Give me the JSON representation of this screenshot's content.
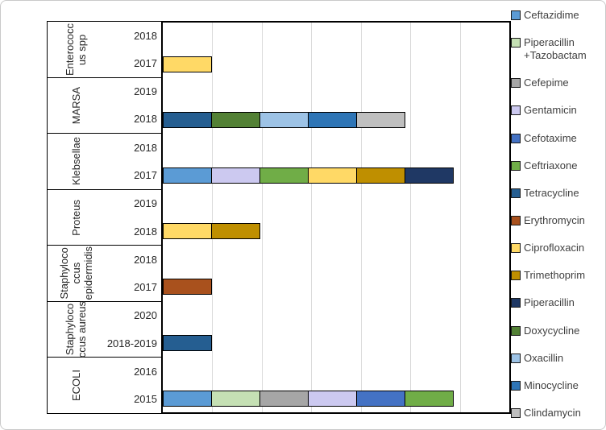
{
  "chart_data": {
    "type": "bar",
    "orientation": "horizontal",
    "stacked": true,
    "title": "",
    "xlabel": "",
    "ylabel": "",
    "xlim": [
      0,
      7
    ],
    "grid": true,
    "gridline_color": "#d9d9d9",
    "segment_value": 1,
    "legend_position": "right",
    "groups": [
      {
        "organism": "Enterococcus spp",
        "label_lines": [
          "Enterococc",
          "us spp"
        ],
        "rows": [
          {
            "year": "2018",
            "segments": []
          },
          {
            "year": "2017",
            "segments": [
              "Ciprofloxacin"
            ]
          }
        ]
      },
      {
        "organism": "MARSA",
        "label_lines": [
          "MARSA"
        ],
        "rows": [
          {
            "year": "2019",
            "segments": []
          },
          {
            "year": "2018",
            "segments": [
              "Tetracycline",
              "Doxycycline",
              "Oxacillin",
              "Minocycline",
              "Clindamycin"
            ]
          }
        ]
      },
      {
        "organism": "Klebsellae",
        "label_lines": [
          "Klebsellae"
        ],
        "rows": [
          {
            "year": "2018",
            "segments": []
          },
          {
            "year": "2017",
            "segments": [
              "Ceftazidime",
              "Gentamicin",
              "Ceftriaxone",
              "Ciprofloxacin",
              "Trimethoprim",
              "Piperacillin"
            ]
          }
        ]
      },
      {
        "organism": "Proteus",
        "label_lines": [
          "Proteus"
        ],
        "rows": [
          {
            "year": "2019",
            "segments": []
          },
          {
            "year": "2018",
            "segments": [
              "Ciprofloxacin",
              "Trimethoprim"
            ]
          }
        ]
      },
      {
        "organism": "Staphylococcus epidermidis",
        "label_lines": [
          "Staphyloco",
          "ccus",
          "epidermidis"
        ],
        "rows": [
          {
            "year": "2018",
            "segments": []
          },
          {
            "year": "2017",
            "segments": [
              "Erythromycin"
            ]
          }
        ]
      },
      {
        "organism": "Staphylococcus aureus",
        "label_lines": [
          "Staphyloco",
          "ccus aureus"
        ],
        "rows": [
          {
            "year": "2020",
            "segments": []
          },
          {
            "year": "2018-2019",
            "segments": [
              "Tetracycline"
            ]
          }
        ]
      },
      {
        "organism": "ECOLI",
        "label_lines": [
          "ECOLI"
        ],
        "rows": [
          {
            "year": "2016",
            "segments": []
          },
          {
            "year": "2015",
            "segments": [
              "Ceftazidime",
              "Piperacillin +Tazobactam",
              "Cefepime",
              "Gentamicin",
              "Cefotaxime",
              "Ceftriaxone"
            ]
          }
        ]
      }
    ],
    "legend": [
      {
        "label": "Ceftazidime",
        "color": "#5B9BD5"
      },
      {
        "label": "Piperacillin +Tazobactam",
        "lines": [
          "Piperacillin",
          "+Tazobactam"
        ],
        "color": "#C5E0B4"
      },
      {
        "label": "Cefepime",
        "color": "#A6A6A6"
      },
      {
        "label": "Gentamicin",
        "color": "#CCC9F0"
      },
      {
        "label": "Cefotaxime",
        "color": "#4472C4"
      },
      {
        "label": "Ceftriaxone",
        "color": "#70AD47"
      },
      {
        "label": "Tetracycline",
        "color": "#255E91"
      },
      {
        "label": "Erythromycin",
        "color": "#A9511D"
      },
      {
        "label": "Ciprofloxacin",
        "color": "#FFD966"
      },
      {
        "label": "Trimethoprim",
        "color": "#BF8F00"
      },
      {
        "label": "Piperacillin",
        "color": "#1F3864"
      },
      {
        "label": "Doxycycline",
        "color": "#538135"
      },
      {
        "label": "Oxacillin",
        "color": "#9DC3E6"
      },
      {
        "label": "Minocycline",
        "color": "#2E75B6"
      },
      {
        "label": "Clindamycin",
        "color": "#BFBFBF"
      }
    ]
  }
}
